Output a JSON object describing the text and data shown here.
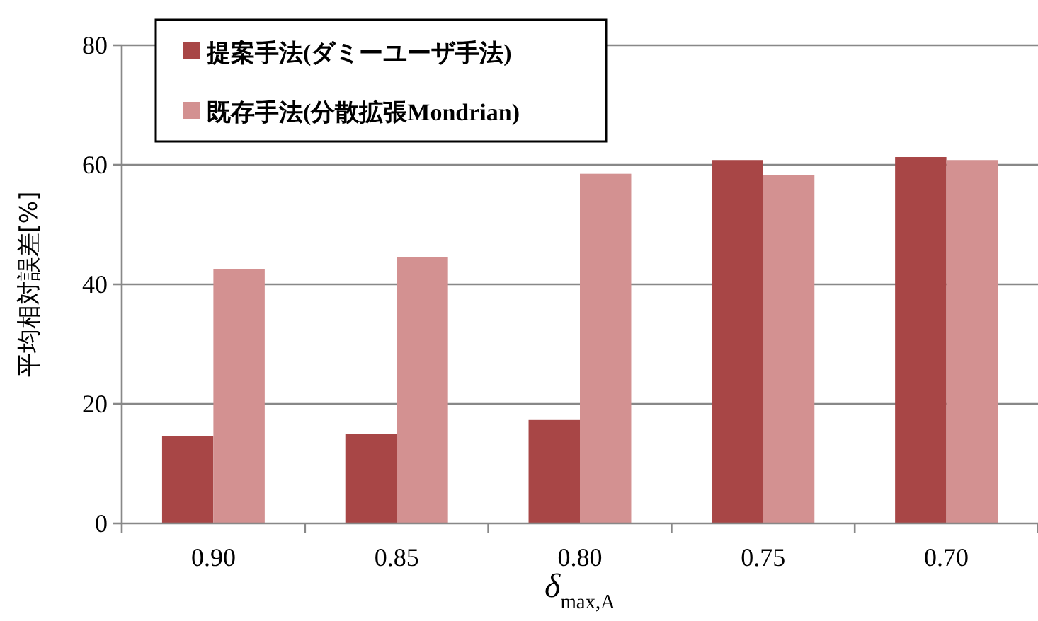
{
  "chart_data": {
    "type": "bar",
    "xlabel": "δ$_{max,A}$",
    "ylabel": "平均相対誤差[%]",
    "categories": [
      "0.90",
      "0.85",
      "0.80",
      "0.75",
      "0.70"
    ],
    "series": [
      {
        "name": "提案手法(ダミーユーザ手法)",
        "color": "#a84646",
        "values": [
          14.6,
          15.0,
          17.3,
          60.8,
          61.3
        ]
      },
      {
        "name": "既存手法(分散拡張Mondrian)",
        "color": "#d39191",
        "values": [
          42.5,
          44.6,
          58.5,
          58.3,
          60.8
        ]
      }
    ],
    "ylim": [
      0,
      80
    ],
    "yticks": [
      0,
      20,
      40,
      60,
      80
    ],
    "grid": "y",
    "legend": "top left"
  }
}
